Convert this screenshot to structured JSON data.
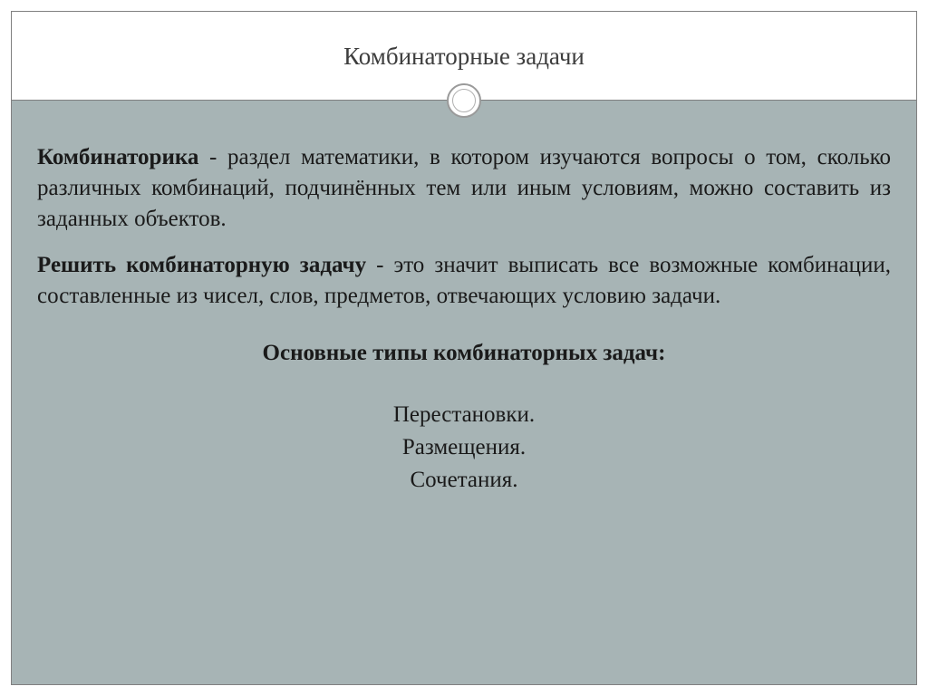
{
  "slide": {
    "title": "Комбинаторные задачи",
    "paragraph1_bold": "Комбинаторика",
    "paragraph1_text": " - раздел математики, в котором изучаются вопросы о том, сколько различных комбинаций, подчинённых тем или иным условиям, можно составить из заданных объектов.",
    "paragraph2_bold": "Решить комбинаторную задачу",
    "paragraph2_text": " - это значит выписать все возможные комбинации, составленные из чисел, слов, предметов, отвечающих условию задачи.",
    "subtitle": "Основные типы комбинаторных задач:",
    "list_items": [
      "Перестановки.",
      "Размещения.",
      "Сочетания."
    ]
  },
  "colors": {
    "background_upper": "#ffffff",
    "background_lower": "#a7b4b5",
    "border_color": "#808080",
    "title_color": "#3d3d3d",
    "text_color": "#1a1a1a",
    "circle_border_outer": "#9a9a9a",
    "circle_border_inner": "#b0b0b0"
  },
  "layout": {
    "slide_width": 1024,
    "slide_height": 768,
    "outer_padding": 12,
    "upper_height": 98,
    "title_fontsize": 27,
    "body_fontsize": 25,
    "circle_outer_diameter": 38,
    "circle_inner_diameter": 26
  }
}
